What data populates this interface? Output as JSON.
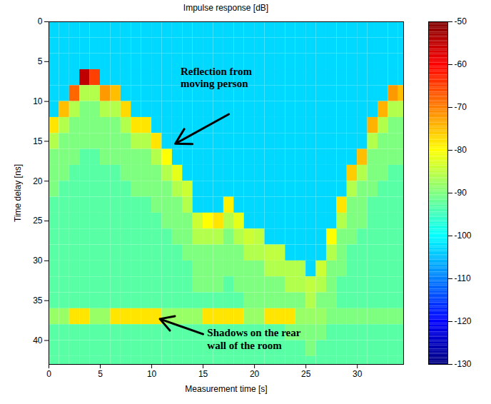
{
  "chart_data": {
    "type": "heatmap",
    "title": "Impulse response [dB]",
    "x_label": "Measurement time [s]",
    "y_label": "Time delay [ns]",
    "xlim": [
      0,
      34.5
    ],
    "ylim": [
      0,
      43
    ],
    "xticks": [
      0,
      5,
      10,
      15,
      20,
      25,
      30
    ],
    "yticks": [
      0,
      5,
      10,
      15,
      20,
      25,
      30,
      35,
      40
    ],
    "cells": {
      "x": [
        0.5,
        1.5,
        2.5,
        3.5,
        4.5,
        5.5,
        6.5,
        7.5,
        8.5,
        9.5,
        10.5,
        11.5,
        12.5,
        13.5,
        14.5,
        15.5,
        16.5,
        17.5,
        18.5,
        19.5,
        20.5,
        21.5,
        22.5,
        23.5,
        24.5,
        25.5,
        26.5,
        27.5,
        28.5,
        29.5,
        30.5,
        31.5,
        32.5,
        33.5,
        34.5
      ],
      "y": [
        1,
        3,
        5,
        7,
        9,
        11,
        13,
        15,
        17,
        19,
        21,
        23,
        25,
        27,
        29,
        31,
        33,
        35,
        37,
        39,
        41,
        43
      ],
      "values": [
        [
          -103,
          -103,
          -103,
          -103,
          -103,
          -103,
          -103,
          -103,
          -103,
          -103,
          -103,
          -103,
          -103,
          -103,
          -103,
          -103,
          -103,
          -103,
          -103,
          -103,
          -103,
          -103,
          -103,
          -103,
          -103,
          -103,
          -103,
          -103,
          -103,
          -103,
          -103,
          -103,
          -103,
          -103,
          -103
        ],
        [
          -103,
          -103,
          -103,
          -103,
          -103,
          -103,
          -103,
          -103,
          -103,
          -103,
          -103,
          -103,
          -103,
          -103,
          -103,
          -103,
          -103,
          -103,
          -103,
          -103,
          -103,
          -103,
          -103,
          -103,
          -103,
          -103,
          -103,
          -103,
          -103,
          -103,
          -103,
          -103,
          -103,
          -103,
          -103
        ],
        [
          -103,
          -103,
          -103,
          -103,
          -103,
          -103,
          -103,
          -103,
          -103,
          -103,
          -103,
          -103,
          -103,
          -103,
          -103,
          -103,
          -103,
          -103,
          -103,
          -103,
          -103,
          -103,
          -103,
          -103,
          -103,
          -103,
          -103,
          -103,
          -103,
          -103,
          -103,
          -103,
          -103,
          -103,
          -103
        ],
        [
          -103,
          -103,
          -103,
          -55,
          -65,
          -103,
          -103,
          -103,
          -103,
          -103,
          -103,
          -103,
          -103,
          -103,
          -103,
          -103,
          -103,
          -103,
          -103,
          -103,
          -103,
          -103,
          -103,
          -103,
          -103,
          -103,
          -103,
          -103,
          -103,
          -103,
          -103,
          -103,
          -103,
          -103,
          -103
        ],
        [
          -103,
          -103,
          -68,
          -86,
          -86,
          -72,
          -75,
          -103,
          -103,
          -103,
          -103,
          -103,
          -103,
          -103,
          -103,
          -103,
          -103,
          -103,
          -103,
          -103,
          -103,
          -103,
          -103,
          -103,
          -103,
          -103,
          -103,
          -103,
          -103,
          -103,
          -103,
          -103,
          -103,
          -72,
          -75
        ],
        [
          -103,
          -75,
          -86,
          -90,
          -90,
          -86,
          -86,
          -77,
          -103,
          -103,
          -103,
          -103,
          -103,
          -103,
          -103,
          -103,
          -103,
          -103,
          -103,
          -103,
          -103,
          -103,
          -103,
          -103,
          -103,
          -103,
          -103,
          -103,
          -103,
          -103,
          -103,
          -103,
          -74,
          -86,
          -86
        ],
        [
          -78,
          -86,
          -90,
          -90,
          -90,
          -90,
          -90,
          -86,
          -78,
          -78,
          -103,
          -103,
          -103,
          -103,
          -103,
          -103,
          -103,
          -103,
          -103,
          -103,
          -103,
          -103,
          -103,
          -103,
          -103,
          -103,
          -103,
          -103,
          -103,
          -103,
          -103,
          -74,
          -86,
          -90,
          -90
        ],
        [
          -86,
          -90,
          -90,
          -90,
          -90,
          -90,
          -90,
          -90,
          -86,
          -86,
          -78,
          -103,
          -103,
          -103,
          -103,
          -103,
          -103,
          -103,
          -103,
          -103,
          -103,
          -103,
          -103,
          -103,
          -103,
          -103,
          -103,
          -103,
          -103,
          -103,
          -103,
          -86,
          -90,
          -90,
          -90
        ],
        [
          -90,
          -90,
          -90,
          -93,
          -93,
          -90,
          -90,
          -90,
          -90,
          -90,
          -86,
          -80,
          -103,
          -103,
          -103,
          -103,
          -103,
          -103,
          -103,
          -103,
          -103,
          -103,
          -103,
          -103,
          -103,
          -103,
          -103,
          -103,
          -103,
          -103,
          -75,
          -90,
          -90,
          -90,
          -90
        ],
        [
          -90,
          -90,
          -93,
          -93,
          -93,
          -93,
          -93,
          -90,
          -90,
          -90,
          -90,
          -86,
          -82,
          -103,
          -103,
          -103,
          -103,
          -103,
          -103,
          -103,
          -103,
          -103,
          -103,
          -103,
          -103,
          -103,
          -103,
          -103,
          -103,
          -76,
          -86,
          -90,
          -90,
          -93,
          -93
        ],
        [
          -90,
          -93,
          -93,
          -93,
          -93,
          -93,
          -93,
          -93,
          -90,
          -90,
          -90,
          -90,
          -86,
          -84,
          -103,
          -103,
          -103,
          -103,
          -103,
          -103,
          -103,
          -103,
          -103,
          -103,
          -103,
          -103,
          -103,
          -103,
          -103,
          -86,
          -90,
          -90,
          -93,
          -93,
          -93
        ],
        [
          -93,
          -93,
          -93,
          -93,
          -93,
          -93,
          -93,
          -93,
          -93,
          -93,
          -90,
          -90,
          -90,
          -86,
          -103,
          -103,
          -103,
          -79,
          -103,
          -103,
          -103,
          -103,
          -103,
          -103,
          -103,
          -103,
          -103,
          -103,
          -78,
          -90,
          -90,
          -93,
          -93,
          -93,
          -93
        ],
        [
          -93,
          -93,
          -93,
          -93,
          -93,
          -93,
          -93,
          -93,
          -93,
          -93,
          -93,
          -90,
          -90,
          -90,
          -84,
          -80,
          -78,
          -86,
          -82,
          -103,
          -103,
          -103,
          -103,
          -103,
          -103,
          -103,
          -103,
          -103,
          -86,
          -90,
          -90,
          -93,
          -93,
          -93,
          -93
        ],
        [
          -93,
          -93,
          -93,
          -93,
          -93,
          -93,
          -93,
          -93,
          -93,
          -93,
          -93,
          -93,
          -90,
          -90,
          -86,
          -86,
          -86,
          -90,
          -86,
          -84,
          -85,
          -103,
          -103,
          -103,
          -103,
          -103,
          -103,
          -80,
          -90,
          -90,
          -93,
          -93,
          -93,
          -93,
          -93
        ],
        [
          -93,
          -93,
          -93,
          -93,
          -93,
          -93,
          -93,
          -93,
          -93,
          -93,
          -93,
          -93,
          -93,
          -90,
          -90,
          -90,
          -90,
          -90,
          -90,
          -86,
          -86,
          -85,
          -85,
          -103,
          -103,
          -103,
          -103,
          -86,
          -90,
          -93,
          -93,
          -93,
          -93,
          -93,
          -93
        ],
        [
          -93,
          -93,
          -93,
          -93,
          -93,
          -93,
          -93,
          -93,
          -93,
          -93,
          -93,
          -93,
          -93,
          -93,
          -90,
          -90,
          -90,
          -90,
          -90,
          -90,
          -90,
          -86,
          -86,
          -86,
          -86,
          -103,
          -84,
          -90,
          -90,
          -93,
          -93,
          -93,
          -93,
          -93,
          -93
        ],
        [
          -93,
          -93,
          -93,
          -93,
          -93,
          -93,
          -93,
          -93,
          -93,
          -93,
          -93,
          -93,
          -93,
          -93,
          -90,
          -90,
          -90,
          -93,
          -90,
          -90,
          -90,
          -90,
          -90,
          -86,
          -86,
          -85,
          -86,
          -90,
          -93,
          -93,
          -93,
          -93,
          -93,
          -93,
          -93
        ],
        [
          -93,
          -93,
          -93,
          -93,
          -93,
          -93,
          -93,
          -93,
          -93,
          -93,
          -93,
          -93,
          -93,
          -93,
          -93,
          -93,
          -93,
          -93,
          -93,
          -90,
          -90,
          -90,
          -90,
          -90,
          -90,
          -86,
          -90,
          -90,
          -93,
          -93,
          -93,
          -93,
          -93,
          -93,
          -93
        ],
        [
          -88,
          -88,
          -78,
          -78,
          -88,
          -88,
          -78,
          -78,
          -78,
          -78,
          -78,
          -88,
          -88,
          -88,
          -88,
          -78,
          -78,
          -78,
          -78,
          -88,
          -88,
          -78,
          -78,
          -78,
          -88,
          -88,
          -88,
          -90,
          -90,
          -90,
          -90,
          -90,
          -90,
          -90,
          -90
        ],
        [
          -93,
          -93,
          -93,
          -93,
          -93,
          -93,
          -93,
          -93,
          -93,
          -93,
          -93,
          -93,
          -93,
          -93,
          -93,
          -93,
          -93,
          -93,
          -93,
          -93,
          -93,
          -93,
          -93,
          -90,
          -90,
          -90,
          -90,
          -93,
          -93,
          -93,
          -93,
          -93,
          -93,
          -93,
          -93
        ],
        [
          -93,
          -93,
          -93,
          -93,
          -93,
          -93,
          -93,
          -93,
          -93,
          -93,
          -93,
          -93,
          -93,
          -93,
          -93,
          -93,
          -93,
          -93,
          -93,
          -93,
          -93,
          -93,
          -93,
          -93,
          -93,
          -90,
          -93,
          -93,
          -93,
          -93,
          -93,
          -93,
          -93,
          -93,
          -93
        ],
        [
          -93,
          -93,
          -93,
          -93,
          -93,
          -93,
          -93,
          -93,
          -93,
          -93,
          -93,
          -93,
          -93,
          -93,
          -93,
          -93,
          -93,
          -93,
          -93,
          -93,
          -93,
          -93,
          -93,
          -93,
          -93,
          -93,
          -93,
          -93,
          -93,
          -93,
          -93,
          -93,
          -93,
          -93,
          -93
        ]
      ]
    },
    "colorbar": {
      "lim": [
        -130,
        -50
      ],
      "ticks": [
        -50,
        -60,
        -70,
        -80,
        -90,
        -100,
        -110,
        -120,
        -130
      ]
    },
    "annotations": [
      {
        "text": "Reflection from moving person"
      },
      {
        "text": "Shadows on the rear wall of the room"
      }
    ]
  }
}
